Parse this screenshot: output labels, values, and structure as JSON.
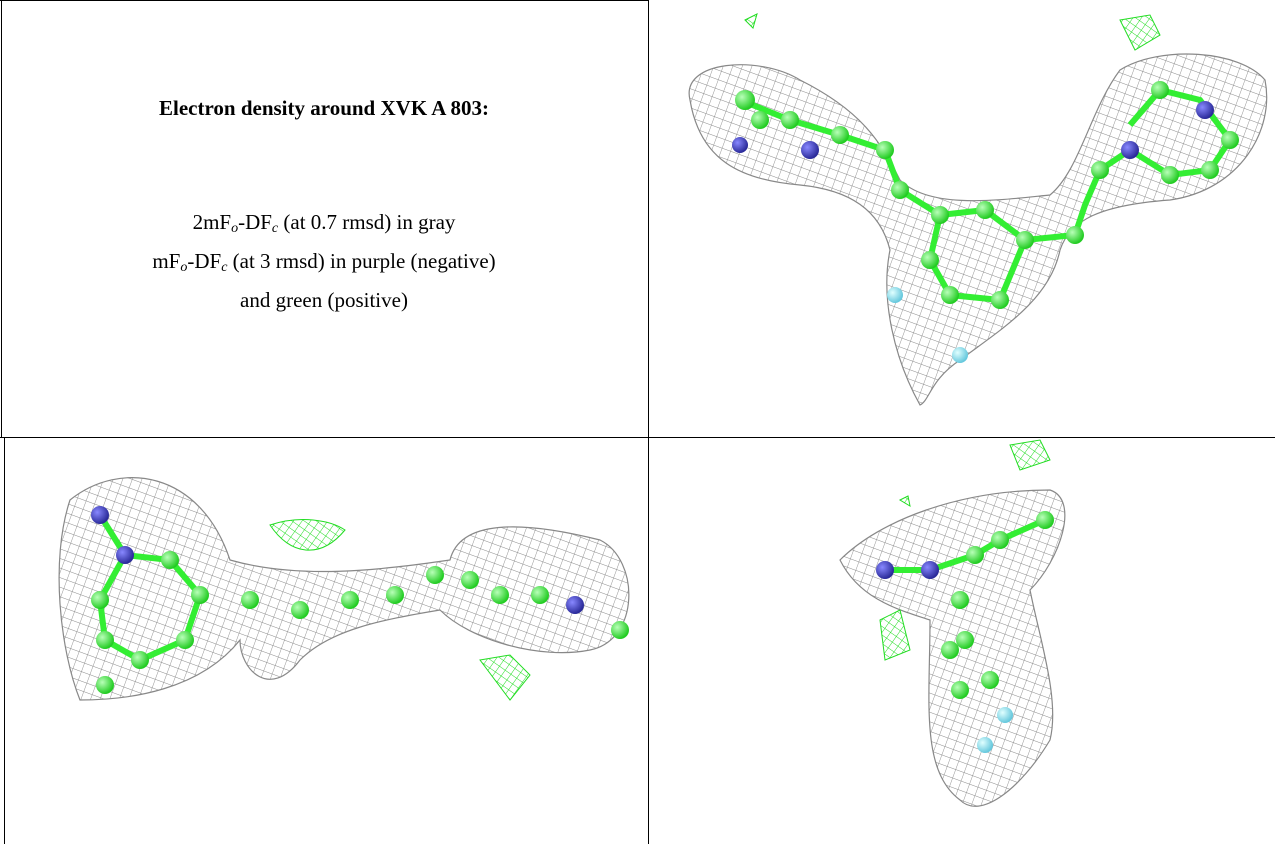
{
  "title": "Electron density around XVK A 803:",
  "legend": [
    [
      "2mF",
      "o",
      "-DF",
      "c",
      " (at 0.7 rmsd) in gray"
    ],
    [
      "mF",
      "o",
      "-DF",
      "c",
      " (at 3 rmsd) in purple (negative)"
    ],
    [
      "and green (positive)"
    ]
  ]
}
